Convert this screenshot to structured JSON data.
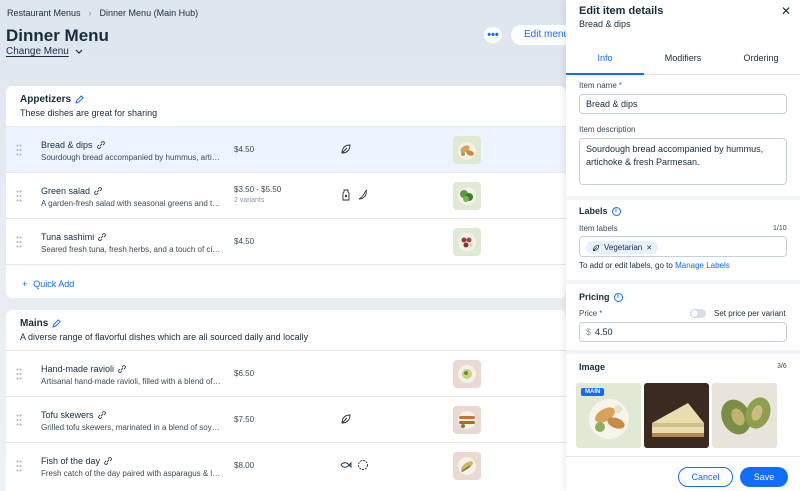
{
  "breadcrumb": {
    "root": "Restaurant Menus",
    "current": "Dinner Menu (Main Hub)"
  },
  "header": {
    "title": "Dinner Menu",
    "change_menu": "Change Menu",
    "edit_menu": "Edit menu",
    "more": "•••"
  },
  "sections": [
    {
      "title": "Appetizers",
      "description": "These dishes are great for sharing",
      "items": [
        {
          "name": "Bread & dips",
          "description": "Sourdough bread accompanied by hummus, artichoke & fresh Parmesan.",
          "price": "$4.50",
          "variants": "",
          "labels": [
            "leaf-icon"
          ],
          "thumb": "bread"
        },
        {
          "name": "Green salad",
          "description": "A garden-fresh salad with seasonal greens and toppings.",
          "price": "$3.50 - $5.50",
          "variants": "2 variants",
          "labels": [
            "jar-icon",
            "chili-icon"
          ],
          "thumb": "salad"
        },
        {
          "name": "Tuna sashimi",
          "description": "Seared fresh tuna, fresh herbs, and a touch of citrus.",
          "price": "$4.50",
          "variants": "",
          "labels": [],
          "thumb": "sashimi"
        }
      ],
      "quick_add": "Quick Add"
    },
    {
      "title": "Mains",
      "description": "A diverse range of flavorful dishes which are all sourced daily and locally",
      "items": [
        {
          "name": "Hand-made ravioli",
          "description": "Artisanal hand-made ravioli, filled with a blend of cheeses.",
          "price": "$6.50",
          "variants": "",
          "labels": [],
          "thumb": "ravioli"
        },
        {
          "name": "Tofu skewers",
          "description": "Grilled tofu skewers, marinated in a blend of soy and spices.",
          "price": "$7.50",
          "variants": "",
          "labels": [
            "leaf-icon"
          ],
          "thumb": "skewers"
        },
        {
          "name": "Fish of the day",
          "description": "Fresh catch of the day paired with asparagus & lemon.",
          "price": "$8.00",
          "variants": "",
          "labels": [
            "fish-icon",
            "shell-icon"
          ],
          "thumb": "fish"
        }
      ]
    }
  ],
  "panel": {
    "title": "Edit item details",
    "subtitle": "Bread & dips",
    "tabs": [
      "Info",
      "Modifiers",
      "Ordering"
    ],
    "active_tab": "Info",
    "item_name_label": "Item name",
    "item_name_value": "Bread & dips",
    "item_desc_label": "Item description",
    "item_desc_value": "Sourdough bread accompanied by hummus, artichoke & fresh Parmesan.",
    "labels_title": "Labels",
    "item_labels_label": "Item labels",
    "labels_counter": "1/10",
    "label_tag": "Vegetarian",
    "labels_helper": "To add or edit labels, go to",
    "labels_link": "Manage Labels",
    "pricing_title": "Pricing",
    "price_label": "Price",
    "variant_toggle_label": "Set price per variant",
    "currency": "$",
    "price_value": "4.50",
    "image_title": "Image",
    "image_counter": "3/6",
    "main_badge": "MAIN",
    "cancel": "Cancel",
    "save": "Save"
  },
  "colors": {
    "accent": "#116dff",
    "selected_row": "#eef4ff",
    "text": "#162d3d"
  }
}
